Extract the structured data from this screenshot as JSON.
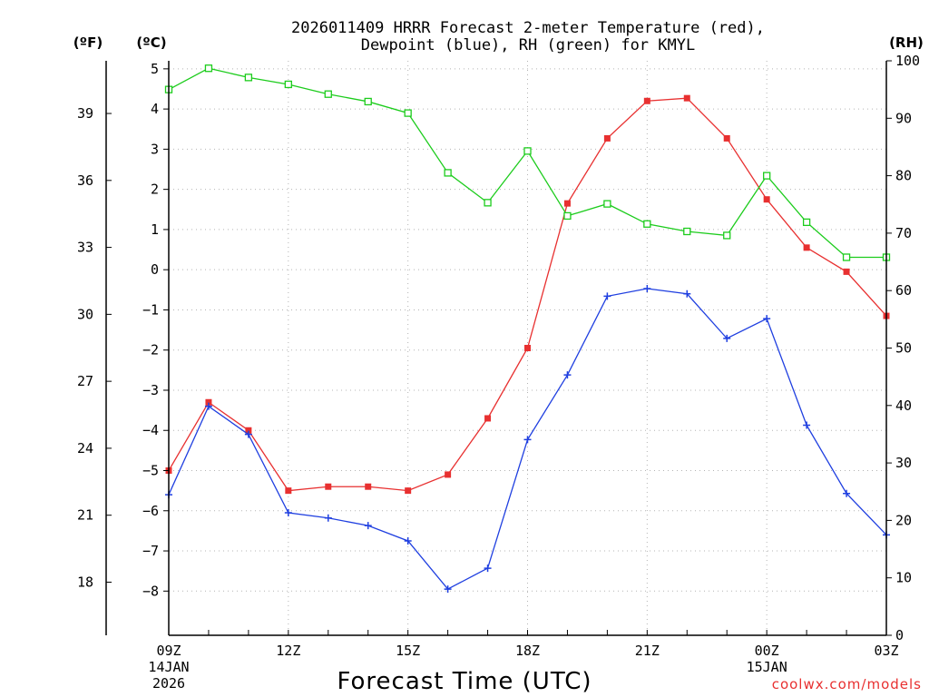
{
  "chart_data": {
    "type": "line",
    "title_line1": "2026011409 HRRR Forecast 2-meter Temperature (red),",
    "title_line2": "Dewpoint (blue), RH (green) for KMYL",
    "xlabel": "Forecast Time (UTC)",
    "unit_left_outer": "(ºF)",
    "unit_left_inner": "(ºC)",
    "unit_right": "(RH)",
    "watermark": "coolwx.com/models",
    "x_hours": [
      0,
      1,
      2,
      3,
      4,
      5,
      6,
      7,
      8,
      9,
      10,
      11,
      12,
      13,
      14,
      15,
      16,
      17,
      18
    ],
    "x_ticks": [
      {
        "hour": 0,
        "lines": [
          "09Z",
          "14JAN",
          "2026"
        ]
      },
      {
        "hour": 3,
        "lines": [
          "12Z"
        ]
      },
      {
        "hour": 6,
        "lines": [
          "15Z"
        ]
      },
      {
        "hour": 9,
        "lines": [
          "18Z"
        ]
      },
      {
        "hour": 12,
        "lines": [
          "21Z"
        ]
      },
      {
        "hour": 15,
        "lines": [
          "00Z",
          "15JAN"
        ]
      },
      {
        "hour": 18,
        "lines": [
          "03Z"
        ]
      }
    ],
    "ylim_c": [
      -9.1,
      5.2
    ],
    "y_ticks_c": [
      5,
      4,
      3,
      2,
      1,
      0,
      -1,
      -2,
      -3,
      -4,
      -5,
      -6,
      -7,
      -8
    ],
    "y_ticks_c_labels": [
      "5",
      "4",
      "3",
      "2",
      "1",
      "0",
      "−1",
      "−2",
      "−3",
      "−4",
      "−5",
      "−6",
      "−7",
      "−8"
    ],
    "y_ticks_f": [
      39,
      36,
      33,
      30,
      27,
      24,
      21,
      18
    ],
    "y_ticks_f_labels": [
      "39",
      "36",
      "33",
      "30",
      "27",
      "24",
      "21",
      "18"
    ],
    "ylim_rh": [
      0,
      100
    ],
    "y_ticks_rh": [
      100,
      90,
      80,
      70,
      60,
      50,
      40,
      30,
      20,
      10,
      0
    ],
    "y_ticks_rh_labels": [
      "100",
      "90",
      "80",
      "70",
      "60",
      "50",
      "40",
      "30",
      "20",
      "10",
      "0"
    ],
    "series": [
      {
        "name": "Temperature",
        "axis": "celsius",
        "color": "#e83030",
        "marker": "filled-square",
        "values": [
          -5.0,
          -3.3,
          -4.0,
          -5.5,
          -5.4,
          -5.4,
          -5.5,
          -5.1,
          -3.7,
          -1.95,
          1.65,
          3.27,
          4.2,
          4.27,
          3.27,
          1.75,
          0.55,
          -0.05,
          -1.15
        ]
      },
      {
        "name": "Dewpoint",
        "axis": "celsius",
        "color": "#1f3fe0",
        "marker": "plus",
        "values": [
          -5.6,
          -3.4,
          -4.1,
          -6.05,
          -6.18,
          -6.37,
          -6.75,
          -7.95,
          -7.43,
          -4.23,
          -2.62,
          -0.66,
          -0.47,
          -0.6,
          -1.71,
          -1.22,
          -3.87,
          -5.57,
          -6.6
        ]
      },
      {
        "name": "RH",
        "axis": "rh",
        "color": "#1ccc1c",
        "marker": "open-square",
        "values": [
          95.0,
          98.7,
          97.1,
          95.9,
          94.2,
          92.9,
          90.9,
          80.5,
          75.3,
          84.3,
          73.0,
          75.1,
          71.6,
          70.3,
          69.6,
          80.0,
          71.9,
          65.8,
          65.8
        ]
      }
    ]
  }
}
